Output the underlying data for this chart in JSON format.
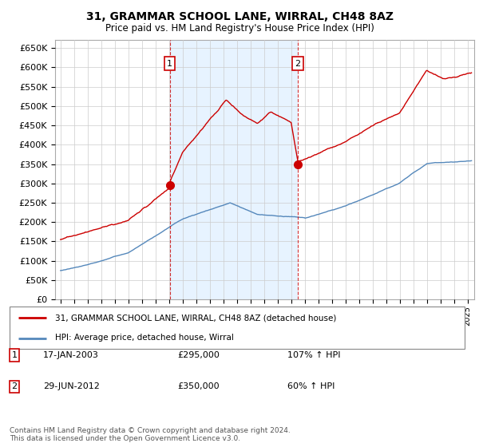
{
  "title": "31, GRAMMAR SCHOOL LANE, WIRRAL, CH48 8AZ",
  "subtitle": "Price paid vs. HM Land Registry's House Price Index (HPI)",
  "ylim": [
    0,
    670000
  ],
  "yticks": [
    0,
    50000,
    100000,
    150000,
    200000,
    250000,
    300000,
    350000,
    400000,
    450000,
    500000,
    550000,
    600000,
    650000
  ],
  "hpi_color": "#5588bb",
  "hpi_fill_color": "#ddeeff",
  "price_color": "#cc0000",
  "grid_color": "#cccccc",
  "background_color": "#ffffff",
  "legend_entries": [
    "31, GRAMMAR SCHOOL LANE, WIRRAL, CH48 8AZ (detached house)",
    "HPI: Average price, detached house, Wirral"
  ],
  "sale1": {
    "label": "1",
    "date": "17-JAN-2003",
    "price": "£295,000",
    "pct": "107%",
    "dir": "↑",
    "ref": "HPI"
  },
  "sale2": {
    "label": "2",
    "date": "29-JUN-2012",
    "price": "£350,000",
    "pct": "60%",
    "dir": "↑",
    "ref": "HPI"
  },
  "footer": "Contains HM Land Registry data © Crown copyright and database right 2024.\nThis data is licensed under the Open Government Licence v3.0.",
  "sale1_x": 2003.05,
  "sale1_y": 295000,
  "sale2_x": 2012.5,
  "sale2_y": 350000,
  "vline1_x": 2003.05,
  "vline2_x": 2012.5,
  "xlim_left": 1994.6,
  "xlim_right": 2025.5
}
